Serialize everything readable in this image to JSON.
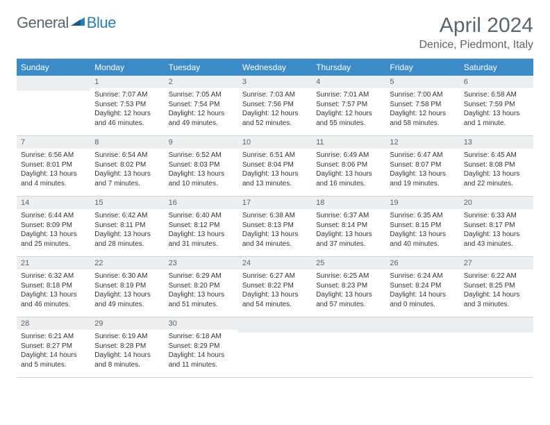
{
  "brand": {
    "part1": "General",
    "part2": "Blue"
  },
  "title": "April 2024",
  "location": "Denice, Piedmont, Italy",
  "colors": {
    "header_bg": "#3b8bc9",
    "header_text": "#ffffff",
    "daynum_bg": "#eceef0",
    "text_muted": "#5a6570",
    "border": "#d0d4d8"
  },
  "weekdays": [
    "Sunday",
    "Monday",
    "Tuesday",
    "Wednesday",
    "Thursday",
    "Friday",
    "Saturday"
  ],
  "weeks": [
    [
      {
        "day": "",
        "sunrise": "",
        "sunset": "",
        "daylight": ""
      },
      {
        "day": "1",
        "sunrise": "Sunrise: 7:07 AM",
        "sunset": "Sunset: 7:53 PM",
        "daylight": "Daylight: 12 hours and 46 minutes."
      },
      {
        "day": "2",
        "sunrise": "Sunrise: 7:05 AM",
        "sunset": "Sunset: 7:54 PM",
        "daylight": "Daylight: 12 hours and 49 minutes."
      },
      {
        "day": "3",
        "sunrise": "Sunrise: 7:03 AM",
        "sunset": "Sunset: 7:56 PM",
        "daylight": "Daylight: 12 hours and 52 minutes."
      },
      {
        "day": "4",
        "sunrise": "Sunrise: 7:01 AM",
        "sunset": "Sunset: 7:57 PM",
        "daylight": "Daylight: 12 hours and 55 minutes."
      },
      {
        "day": "5",
        "sunrise": "Sunrise: 7:00 AM",
        "sunset": "Sunset: 7:58 PM",
        "daylight": "Daylight: 12 hours and 58 minutes."
      },
      {
        "day": "6",
        "sunrise": "Sunrise: 6:58 AM",
        "sunset": "Sunset: 7:59 PM",
        "daylight": "Daylight: 13 hours and 1 minute."
      }
    ],
    [
      {
        "day": "7",
        "sunrise": "Sunrise: 6:56 AM",
        "sunset": "Sunset: 8:01 PM",
        "daylight": "Daylight: 13 hours and 4 minutes."
      },
      {
        "day": "8",
        "sunrise": "Sunrise: 6:54 AM",
        "sunset": "Sunset: 8:02 PM",
        "daylight": "Daylight: 13 hours and 7 minutes."
      },
      {
        "day": "9",
        "sunrise": "Sunrise: 6:52 AM",
        "sunset": "Sunset: 8:03 PM",
        "daylight": "Daylight: 13 hours and 10 minutes."
      },
      {
        "day": "10",
        "sunrise": "Sunrise: 6:51 AM",
        "sunset": "Sunset: 8:04 PM",
        "daylight": "Daylight: 13 hours and 13 minutes."
      },
      {
        "day": "11",
        "sunrise": "Sunrise: 6:49 AM",
        "sunset": "Sunset: 8:06 PM",
        "daylight": "Daylight: 13 hours and 16 minutes."
      },
      {
        "day": "12",
        "sunrise": "Sunrise: 6:47 AM",
        "sunset": "Sunset: 8:07 PM",
        "daylight": "Daylight: 13 hours and 19 minutes."
      },
      {
        "day": "13",
        "sunrise": "Sunrise: 6:45 AM",
        "sunset": "Sunset: 8:08 PM",
        "daylight": "Daylight: 13 hours and 22 minutes."
      }
    ],
    [
      {
        "day": "14",
        "sunrise": "Sunrise: 6:44 AM",
        "sunset": "Sunset: 8:09 PM",
        "daylight": "Daylight: 13 hours and 25 minutes."
      },
      {
        "day": "15",
        "sunrise": "Sunrise: 6:42 AM",
        "sunset": "Sunset: 8:11 PM",
        "daylight": "Daylight: 13 hours and 28 minutes."
      },
      {
        "day": "16",
        "sunrise": "Sunrise: 6:40 AM",
        "sunset": "Sunset: 8:12 PM",
        "daylight": "Daylight: 13 hours and 31 minutes."
      },
      {
        "day": "17",
        "sunrise": "Sunrise: 6:38 AM",
        "sunset": "Sunset: 8:13 PM",
        "daylight": "Daylight: 13 hours and 34 minutes."
      },
      {
        "day": "18",
        "sunrise": "Sunrise: 6:37 AM",
        "sunset": "Sunset: 8:14 PM",
        "daylight": "Daylight: 13 hours and 37 minutes."
      },
      {
        "day": "19",
        "sunrise": "Sunrise: 6:35 AM",
        "sunset": "Sunset: 8:15 PM",
        "daylight": "Daylight: 13 hours and 40 minutes."
      },
      {
        "day": "20",
        "sunrise": "Sunrise: 6:33 AM",
        "sunset": "Sunset: 8:17 PM",
        "daylight": "Daylight: 13 hours and 43 minutes."
      }
    ],
    [
      {
        "day": "21",
        "sunrise": "Sunrise: 6:32 AM",
        "sunset": "Sunset: 8:18 PM",
        "daylight": "Daylight: 13 hours and 46 minutes."
      },
      {
        "day": "22",
        "sunrise": "Sunrise: 6:30 AM",
        "sunset": "Sunset: 8:19 PM",
        "daylight": "Daylight: 13 hours and 49 minutes."
      },
      {
        "day": "23",
        "sunrise": "Sunrise: 6:29 AM",
        "sunset": "Sunset: 8:20 PM",
        "daylight": "Daylight: 13 hours and 51 minutes."
      },
      {
        "day": "24",
        "sunrise": "Sunrise: 6:27 AM",
        "sunset": "Sunset: 8:22 PM",
        "daylight": "Daylight: 13 hours and 54 minutes."
      },
      {
        "day": "25",
        "sunrise": "Sunrise: 6:25 AM",
        "sunset": "Sunset: 8:23 PM",
        "daylight": "Daylight: 13 hours and 57 minutes."
      },
      {
        "day": "26",
        "sunrise": "Sunrise: 6:24 AM",
        "sunset": "Sunset: 8:24 PM",
        "daylight": "Daylight: 14 hours and 0 minutes."
      },
      {
        "day": "27",
        "sunrise": "Sunrise: 6:22 AM",
        "sunset": "Sunset: 8:25 PM",
        "daylight": "Daylight: 14 hours and 3 minutes."
      }
    ],
    [
      {
        "day": "28",
        "sunrise": "Sunrise: 6:21 AM",
        "sunset": "Sunset: 8:27 PM",
        "daylight": "Daylight: 14 hours and 5 minutes."
      },
      {
        "day": "29",
        "sunrise": "Sunrise: 6:19 AM",
        "sunset": "Sunset: 8:28 PM",
        "daylight": "Daylight: 14 hours and 8 minutes."
      },
      {
        "day": "30",
        "sunrise": "Sunrise: 6:18 AM",
        "sunset": "Sunset: 8:29 PM",
        "daylight": "Daylight: 14 hours and 11 minutes."
      },
      {
        "day": "",
        "sunrise": "",
        "sunset": "",
        "daylight": ""
      },
      {
        "day": "",
        "sunrise": "",
        "sunset": "",
        "daylight": ""
      },
      {
        "day": "",
        "sunrise": "",
        "sunset": "",
        "daylight": ""
      },
      {
        "day": "",
        "sunrise": "",
        "sunset": "",
        "daylight": ""
      }
    ]
  ]
}
